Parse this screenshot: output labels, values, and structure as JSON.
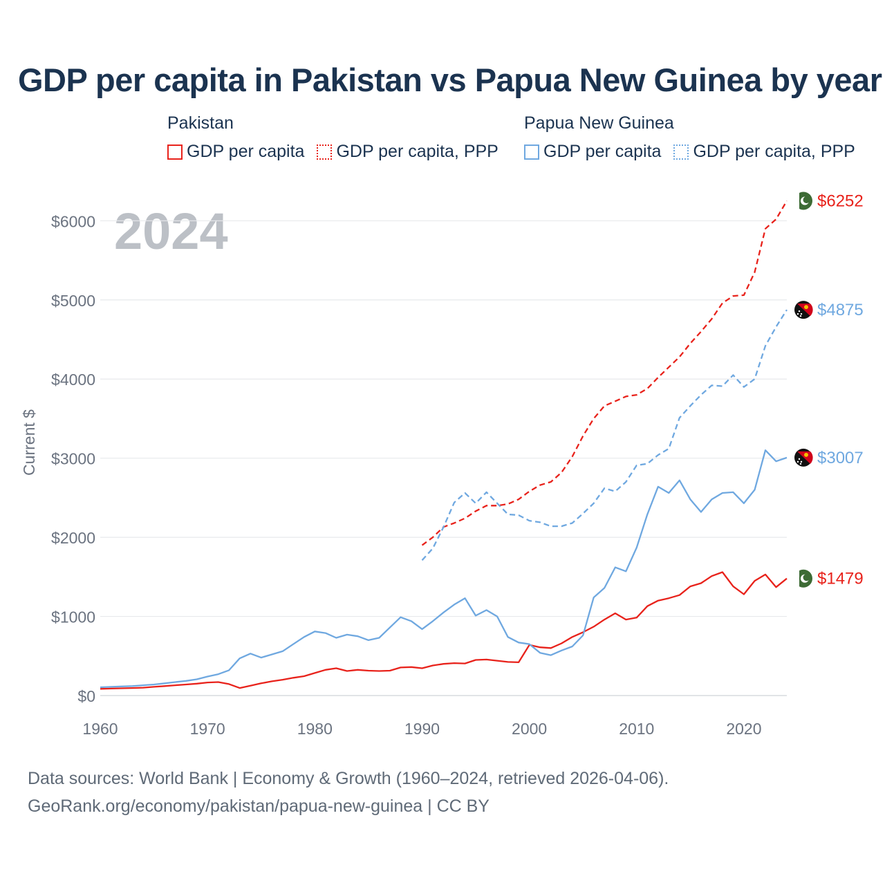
{
  "title": "GDP per capita in Pakistan vs Papua New Guinea by year",
  "legend": {
    "groups": [
      {
        "name": "Pakistan",
        "color": "#e8221b",
        "items": [
          {
            "label": "GDP per capita",
            "style": "solid"
          },
          {
            "label": "GDP per capita, PPP",
            "style": "dotted"
          }
        ]
      },
      {
        "name": "Papua New Guinea",
        "color": "#6fa8e0",
        "items": [
          {
            "label": "GDP per capita",
            "style": "solid"
          },
          {
            "label": "GDP per capita, PPP",
            "style": "dotted"
          }
        ]
      }
    ]
  },
  "year_display": "2024",
  "source": {
    "line1": "Data sources: World Bank | Economy & Growth (1960–2024, retrieved 2026-04-06).",
    "line2": "GeoRank.org/economy/pakistan/papua-new-guinea | CC BY"
  },
  "chart_data": {
    "type": "line",
    "title": "GDP per capita in Pakistan vs Papua New Guinea by year",
    "xlabel": "",
    "ylabel": "Current $",
    "xlim": [
      1960,
      2024
    ],
    "ylim": [
      0,
      6300
    ],
    "x_ticks": [
      1960,
      1970,
      1980,
      1990,
      2000,
      2010,
      2020
    ],
    "y_ticks": [
      0,
      1000,
      2000,
      3000,
      4000,
      5000,
      6000
    ],
    "y_tick_labels": [
      "$0",
      "$1000",
      "$2000",
      "$3000",
      "$4000",
      "$5000",
      "$6000"
    ],
    "grid": true,
    "series": [
      {
        "name": "Pakistan GDP per capita",
        "country": "Pakistan",
        "color": "#e8221b",
        "dash": "solid",
        "x_start": 1960,
        "values": [
          85,
          88,
          92,
          95,
          100,
          110,
          120,
          130,
          140,
          150,
          165,
          170,
          145,
          95,
          125,
          155,
          180,
          200,
          225,
          245,
          285,
          325,
          345,
          310,
          325,
          315,
          310,
          315,
          355,
          360,
          345,
          380,
          400,
          410,
          405,
          450,
          455,
          440,
          425,
          420,
          640,
          610,
          600,
          660,
          740,
          800,
          870,
          960,
          1040,
          960,
          985,
          1130,
          1200,
          1230,
          1270,
          1380,
          1420,
          1510,
          1560,
          1380,
          1280,
          1450,
          1530,
          1370,
          1479
        ],
        "end_label": "$1479"
      },
      {
        "name": "Pakistan GDP per capita, PPP",
        "country": "Pakistan",
        "color": "#e8221b",
        "dash": "dashed",
        "x_start": 1990,
        "values": [
          1900,
          2000,
          2130,
          2180,
          2240,
          2330,
          2400,
          2400,
          2420,
          2480,
          2580,
          2660,
          2700,
          2820,
          3020,
          3280,
          3500,
          3660,
          3720,
          3780,
          3800,
          3880,
          4020,
          4150,
          4280,
          4450,
          4600,
          4760,
          4960,
          5050,
          5060,
          5350,
          5900,
          6020,
          6252
        ],
        "end_label": "$6252"
      },
      {
        "name": "Papua New Guinea GDP per capita",
        "country": "Papua New Guinea",
        "color": "#6fa8e0",
        "dash": "solid",
        "x_start": 1960,
        "values": [
          105,
          110,
          115,
          120,
          130,
          140,
          155,
          170,
          185,
          205,
          240,
          270,
          320,
          470,
          530,
          480,
          520,
          560,
          650,
          740,
          810,
          790,
          730,
          770,
          750,
          700,
          730,
          860,
          990,
          940,
          840,
          940,
          1050,
          1150,
          1230,
          1010,
          1080,
          1000,
          740,
          670,
          650,
          540,
          510,
          570,
          620,
          760,
          1240,
          1360,
          1620,
          1570,
          1870,
          2290,
          2640,
          2560,
          2720,
          2480,
          2320,
          2480,
          2560,
          2570,
          2430,
          2600,
          3100,
          2960,
          3007
        ],
        "end_label": "$3007"
      },
      {
        "name": "Papua New Guinea GDP per capita, PPP",
        "country": "Papua New Guinea",
        "color": "#6fa8e0",
        "dash": "dashed",
        "x_start": 1990,
        "values": [
          1710,
          1860,
          2130,
          2440,
          2560,
          2430,
          2570,
          2430,
          2290,
          2280,
          2210,
          2190,
          2140,
          2140,
          2180,
          2300,
          2430,
          2620,
          2580,
          2700,
          2910,
          2930,
          3040,
          3120,
          3510,
          3660,
          3800,
          3920,
          3910,
          4050,
          3900,
          4000,
          4420,
          4660,
          4875
        ],
        "end_label": "$4875"
      }
    ]
  }
}
